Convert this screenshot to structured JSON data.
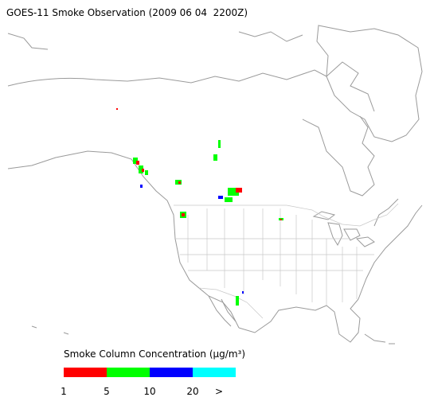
{
  "title": "GOES-11 Smoke Observation (2009 06 04  2200Z)",
  "legend": {
    "label": "Smoke Column Concentration (μg/m³)",
    "colors": [
      "#ff0000",
      "#00ff00",
      "#0000ff",
      "#00ffff"
    ],
    "ticks": [
      1,
      5,
      10,
      20
    ],
    "overflow_label": ">"
  }
}
